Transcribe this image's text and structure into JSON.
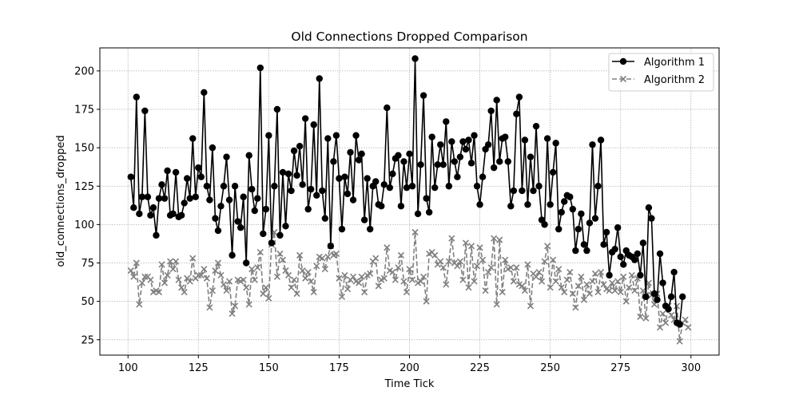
{
  "chart_data": {
    "type": "line",
    "title": "Old Connections Dropped Comparison",
    "xlabel": "Time Tick",
    "ylabel": "old_connections_dropped",
    "xlim": [
      90,
      310
    ],
    "ylim": [
      15,
      215
    ],
    "x_ticks": [
      100,
      125,
      150,
      175,
      200,
      225,
      250,
      275,
      300
    ],
    "y_ticks": [
      25,
      50,
      75,
      100,
      125,
      150,
      175,
      200
    ],
    "grid": true,
    "legend_position": "upper right",
    "x_start": 101,
    "series": [
      {
        "name": "Algorithm 1",
        "color": "#000000",
        "line_style": "solid",
        "marker": "circle",
        "values": [
          131,
          111,
          183,
          107,
          118,
          174,
          118,
          106,
          111,
          93,
          117,
          126,
          117,
          135,
          106,
          107,
          134,
          105,
          106,
          114,
          130,
          117,
          156,
          118,
          137,
          131,
          186,
          125,
          116,
          150,
          104,
          96,
          112,
          125,
          144,
          116,
          80,
          125,
          102,
          98,
          118,
          75,
          145,
          123,
          109,
          117,
          202,
          94,
          110,
          158,
          88,
          125,
          175,
          93,
          134,
          99,
          133,
          122,
          148,
          132,
          151,
          126,
          169,
          110,
          123,
          165,
          119,
          195,
          122,
          104,
          156,
          86,
          141,
          158,
          130,
          97,
          131,
          120,
          147,
          116,
          158,
          142,
          146,
          103,
          130,
          97,
          125,
          128,
          113,
          112,
          126,
          176,
          124,
          133,
          143,
          145,
          112,
          141,
          124,
          146,
          125,
          208,
          107,
          139,
          184,
          117,
          108,
          157,
          124,
          139,
          152,
          139,
          167,
          125,
          154,
          141,
          131,
          144,
          154,
          149,
          155,
          140,
          158,
          125,
          113,
          131,
          149,
          152,
          174,
          137,
          181,
          141,
          156,
          157,
          141,
          112,
          122,
          172,
          183,
          122,
          155,
          113,
          144,
          122,
          164,
          125,
          103,
          100,
          156,
          113,
          134,
          153,
          97,
          108,
          115,
          119,
          118,
          110,
          83,
          97,
          107,
          87,
          83,
          101,
          152,
          104,
          125,
          155,
          87,
          95,
          67,
          82,
          84,
          98,
          79,
          74,
          83,
          80,
          79,
          77,
          81,
          67,
          88,
          53,
          111,
          104,
          55,
          51,
          81,
          62,
          47,
          45,
          53,
          69,
          36,
          35,
          53
        ]
      },
      {
        "name": "Algorithm 2",
        "color": "#808080",
        "line_style": "dashed",
        "marker": "x",
        "values": [
          70,
          66,
          75,
          48,
          62,
          66,
          66,
          64,
          56,
          57,
          56,
          74,
          62,
          67,
          76,
          71,
          76,
          64,
          59,
          56,
          65,
          63,
          78,
          65,
          67,
          67,
          71,
          65,
          46,
          57,
          70,
          75,
          67,
          61,
          57,
          63,
          42,
          47,
          64,
          63,
          64,
          59,
          48,
          71,
          64,
          72,
          82,
          55,
          59,
          52,
          87,
          95,
          66,
          81,
          77,
          70,
          67,
          59,
          64,
          55,
          80,
          70,
          65,
          69,
          63,
          56,
          73,
          79,
          78,
          71,
          79,
          86,
          80,
          81,
          65,
          53,
          67,
          58,
          64,
          66,
          63,
          62,
          66,
          56,
          67,
          68,
          76,
          78,
          60,
          64,
          65,
          85,
          70,
          69,
          64,
          72,
          80,
          63,
          56,
          71,
          64,
          95,
          62,
          63,
          66,
          50,
          81,
          82,
          80,
          74,
          76,
          72,
          61,
          76,
          91,
          75,
          73,
          76,
          64,
          88,
          59,
          86,
          63,
          73,
          85,
          77,
          57,
          69,
          72,
          91,
          48,
          90,
          56,
          77,
          71,
          72,
          63,
          72,
          61,
          60,
          57,
          74,
          47,
          68,
          66,
          69,
          63,
          76,
          86,
          59,
          77,
          63,
          71,
          59,
          56,
          64,
          69,
          55,
          46,
          60,
          66,
          51,
          61,
          55,
          63,
          68,
          56,
          69,
          61,
          58,
          57,
          62,
          57,
          63,
          56,
          66,
          50,
          59,
          67,
          57,
          65,
          40,
          57,
          39,
          62,
          54,
          48,
          55,
          33,
          42,
          36,
          47,
          41,
          38,
          47,
          24,
          36,
          38,
          33
        ]
      }
    ]
  }
}
